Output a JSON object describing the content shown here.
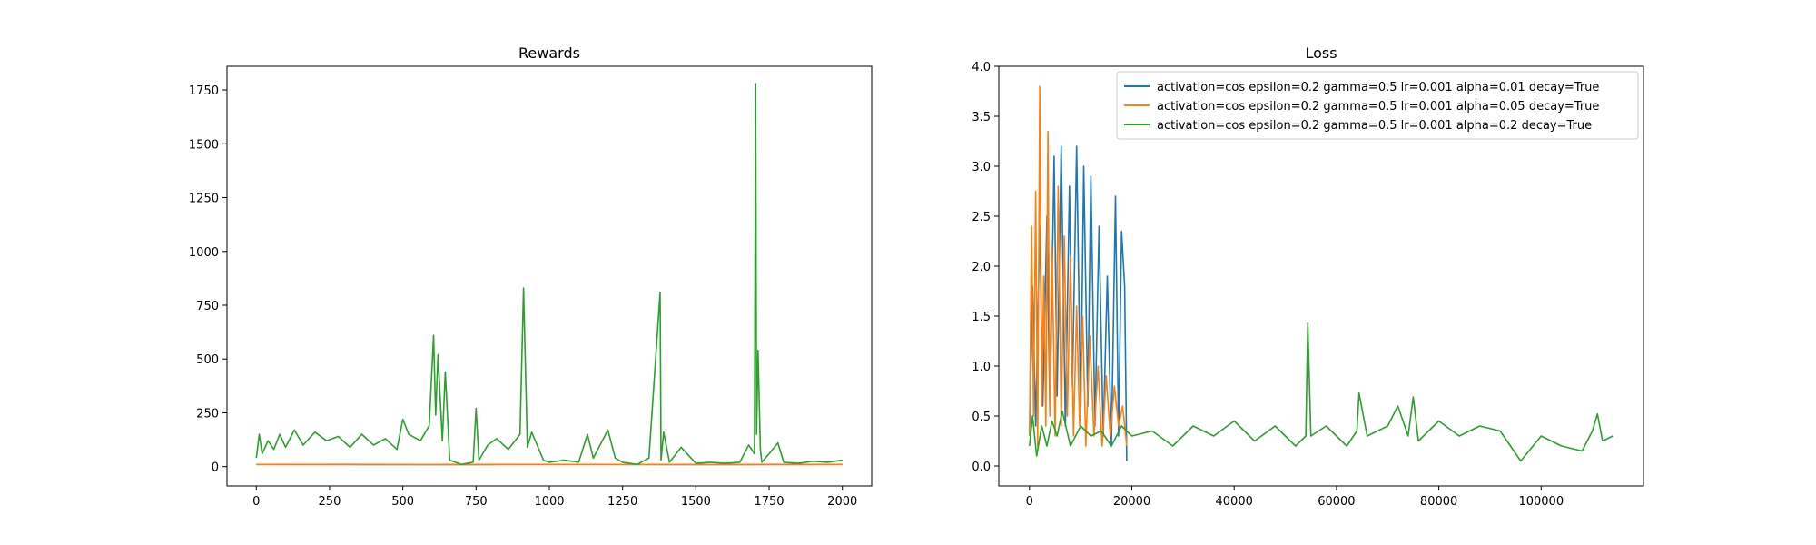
{
  "chart_data": [
    {
      "type": "line",
      "title": "Rewards",
      "xlabel": "",
      "ylabel": "",
      "xlim": [
        -100,
        2100
      ],
      "ylim": [
        -90,
        1860
      ],
      "xticks": [
        0,
        250,
        500,
        750,
        1000,
        1250,
        1500,
        1750,
        2000
      ],
      "yticks": [
        0,
        250,
        500,
        750,
        1000,
        1250,
        1500,
        1750
      ],
      "legend": null,
      "series": [
        {
          "color": "#1f77b4",
          "x": [
            0,
            300,
            600,
            900,
            1200,
            1500,
            1800,
            2000
          ],
          "y": [
            10,
            10,
            9,
            10,
            10,
            9,
            10,
            10
          ]
        },
        {
          "color": "#ff7f0e",
          "x": [
            0,
            300,
            600,
            900,
            1200,
            1500,
            1800,
            2000
          ],
          "y": [
            10,
            9,
            9,
            10,
            10,
            10,
            9,
            10
          ]
        },
        {
          "color": "#2ca02c",
          "x": [
            0,
            10,
            20,
            40,
            60,
            80,
            100,
            130,
            160,
            200,
            240,
            280,
            320,
            360,
            400,
            440,
            480,
            500,
            520,
            560,
            590,
            605,
            612,
            620,
            635,
            645,
            660,
            700,
            740,
            750,
            760,
            790,
            820,
            860,
            900,
            912,
            925,
            940,
            980,
            1000,
            1050,
            1100,
            1130,
            1150,
            1200,
            1225,
            1250,
            1300,
            1340,
            1378,
            1381,
            1390,
            1410,
            1450,
            1500,
            1550,
            1600,
            1650,
            1680,
            1700,
            1704,
            1707,
            1712,
            1720,
            1725,
            1750,
            1780,
            1800,
            1850,
            1900,
            1950,
            2000
          ],
          "y": [
            40,
            150,
            60,
            120,
            80,
            150,
            90,
            170,
            100,
            160,
            120,
            140,
            90,
            150,
            100,
            130,
            80,
            220,
            150,
            120,
            190,
            610,
            240,
            520,
            120,
            440,
            30,
            10,
            20,
            270,
            30,
            100,
            130,
            80,
            150,
            830,
            90,
            160,
            30,
            20,
            30,
            20,
            150,
            40,
            170,
            40,
            20,
            10,
            40,
            810,
            30,
            160,
            20,
            90,
            15,
            20,
            15,
            20,
            100,
            60,
            1780,
            150,
            540,
            80,
            20,
            60,
            110,
            20,
            15,
            25,
            20,
            30
          ]
        }
      ]
    },
    {
      "type": "line",
      "title": "Loss",
      "xlabel": "",
      "ylabel": "",
      "xlim": [
        -6000,
        120000
      ],
      "ylim": [
        -0.2,
        4.0
      ],
      "xticks": [
        0,
        20000,
        40000,
        60000,
        80000,
        100000
      ],
      "yticks": [
        0.0,
        0.5,
        1.0,
        1.5,
        2.0,
        2.5,
        3.0,
        3.5,
        4.0
      ],
      "legend": "upper right",
      "series": [
        {
          "name": "activation=cos epsilon=0.2 gamma=0.5 lr=0.001 alpha=0.01 decay=True",
          "color": "#1f77b4",
          "x": [
            0,
            600,
            1200,
            2000,
            2600,
            3400,
            4000,
            4800,
            5400,
            6200,
            7000,
            7800,
            8400,
            9200,
            10000,
            10600,
            11400,
            12000,
            12800,
            13600,
            14400,
            15200,
            16000,
            16800,
            17400,
            18000,
            18600,
            19000
          ],
          "y": [
            0.3,
            1.8,
            0.4,
            2.4,
            0.6,
            2.5,
            0.5,
            3.1,
            0.7,
            3.2,
            0.4,
            2.8,
            0.8,
            3.2,
            0.5,
            3.0,
            0.6,
            2.9,
            0.4,
            2.4,
            0.3,
            1.9,
            0.2,
            2.7,
            0.3,
            2.35,
            1.8,
            0.05
          ]
        },
        {
          "name": "activation=cos epsilon=0.2 gamma=0.5 lr=0.001 alpha=0.05 decay=True",
          "color": "#ff7f0e",
          "x": [
            0,
            400,
            800,
            1200,
            1600,
            2000,
            2400,
            2800,
            3200,
            3600,
            4000,
            4400,
            5000,
            5600,
            6200,
            6800,
            7400,
            8000,
            8600,
            9200,
            9800,
            10400,
            11000,
            11800,
            12600,
            13400,
            14200,
            15000,
            15800,
            16600,
            17400,
            18200,
            19000
          ],
          "y": [
            0.3,
            2.4,
            0.5,
            2.75,
            0.2,
            3.8,
            0.6,
            1.9,
            0.4,
            3.35,
            0.5,
            2.2,
            0.3,
            2.8,
            0.4,
            2.3,
            0.5,
            2.1,
            0.3,
            1.6,
            0.4,
            1.5,
            0.2,
            1.3,
            0.3,
            1.0,
            0.2,
            0.9,
            0.3,
            0.8,
            0.4,
            0.6,
            0.2
          ]
        },
        {
          "name": "activation=cos epsilon=0.2 gamma=0.5 lr=0.001 alpha=0.2 decay=True",
          "color": "#2ca02c",
          "x": [
            0,
            600,
            1400,
            2400,
            3400,
            4400,
            5400,
            6400,
            8000,
            10000,
            12000,
            14000,
            16000,
            18000,
            20000,
            24000,
            28000,
            32000,
            36000,
            40000,
            44000,
            48000,
            52000,
            54000,
            54400,
            55000,
            58000,
            62000,
            64000,
            64400,
            66000,
            70000,
            72000,
            74000,
            75000,
            76000,
            80000,
            84000,
            88000,
            92000,
            94000,
            96000,
            100000,
            104000,
            108000,
            110000,
            111000,
            112000,
            114000
          ],
          "y": [
            0.2,
            0.5,
            0.1,
            0.4,
            0.2,
            0.45,
            0.3,
            0.55,
            0.2,
            0.4,
            0.3,
            0.35,
            0.2,
            0.4,
            0.3,
            0.35,
            0.2,
            0.4,
            0.3,
            0.45,
            0.25,
            0.4,
            0.2,
            0.3,
            1.43,
            0.3,
            0.4,
            0.2,
            0.35,
            0.73,
            0.3,
            0.4,
            0.6,
            0.3,
            0.69,
            0.25,
            0.45,
            0.3,
            0.4,
            0.35,
            0.2,
            0.05,
            0.3,
            0.2,
            0.15,
            0.35,
            0.52,
            0.25,
            0.3
          ]
        }
      ]
    }
  ]
}
